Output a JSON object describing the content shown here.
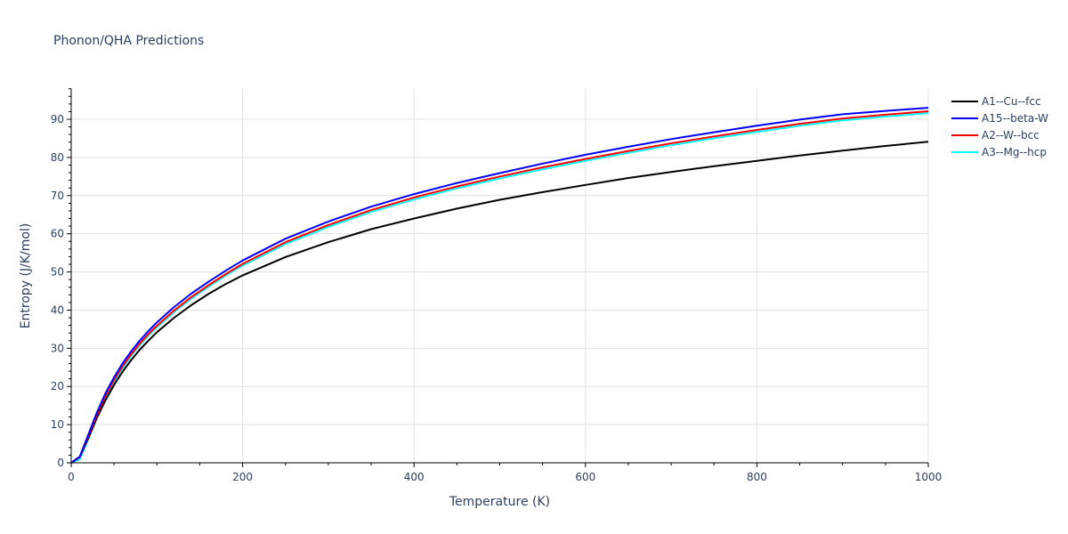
{
  "title": "Phonon/QHA Predictions",
  "chart_data": {
    "type": "line",
    "title": "Phonon/QHA Predictions",
    "xlabel": "Temperature (K)",
    "ylabel": "Entropy (J/K/mol)",
    "xlim": [
      0,
      1000
    ],
    "ylim": [
      0,
      98
    ],
    "x_ticks": [
      0,
      200,
      400,
      600,
      800,
      1000
    ],
    "y_ticks": [
      0,
      10,
      20,
      30,
      40,
      50,
      60,
      70,
      80,
      90
    ],
    "grid": true,
    "legend_position": "right",
    "x": [
      0,
      10,
      20,
      30,
      40,
      50,
      60,
      70,
      80,
      90,
      100,
      120,
      140,
      160,
      180,
      200,
      250,
      300,
      350,
      400,
      450,
      500,
      550,
      600,
      650,
      700,
      750,
      800,
      850,
      900,
      950,
      1000
    ],
    "series": [
      {
        "name": "A1--Cu--fcc",
        "color": "#000000",
        "values": [
          0,
          1.5,
          6.5,
          11.8,
          16.4,
          20.4,
          23.9,
          26.9,
          29.6,
          32.0,
          34.2,
          38.0,
          41.3,
          44.2,
          46.8,
          49.1,
          53.9,
          57.8,
          61.2,
          64.0,
          66.6,
          68.9,
          70.9,
          72.8,
          74.6,
          76.2,
          77.7,
          79.1,
          80.5,
          81.8,
          83.0,
          84.1
        ]
      },
      {
        "name": "A15--beta-W",
        "color": "#0000ff",
        "values": [
          0,
          1.6,
          7.4,
          13.2,
          18.2,
          22.4,
          26.1,
          29.2,
          32.0,
          34.5,
          36.8,
          40.8,
          44.3,
          47.4,
          50.3,
          53.0,
          58.7,
          63.2,
          67.1,
          70.4,
          73.3,
          75.9,
          78.4,
          80.7,
          82.8,
          84.8,
          86.6,
          88.3,
          89.9,
          91.3,
          92.2,
          93.0
        ]
      },
      {
        "name": "A2--W--bcc",
        "color": "#ff0000",
        "values": [
          0,
          1.5,
          7.0,
          12.6,
          17.5,
          21.7,
          25.3,
          28.4,
          31.2,
          33.7,
          35.9,
          39.9,
          43.4,
          46.5,
          49.4,
          52.1,
          57.8,
          62.3,
          66.2,
          69.5,
          72.4,
          75.0,
          77.4,
          79.6,
          81.7,
          83.7,
          85.5,
          87.2,
          88.8,
          90.2,
          91.2,
          92.1
        ]
      },
      {
        "name": "A3--Mg--hcp",
        "color": "#00ffff",
        "values": [
          0,
          0.9,
          6.2,
          11.9,
          16.9,
          21.1,
          24.8,
          28.0,
          30.8,
          33.3,
          35.5,
          39.5,
          43.0,
          46.1,
          49.0,
          51.7,
          57.3,
          61.8,
          65.7,
          69.0,
          71.9,
          74.5,
          76.9,
          79.1,
          81.2,
          83.2,
          85.0,
          86.7,
          88.3,
          89.7,
          90.7,
          91.6
        ]
      }
    ]
  },
  "axes": {
    "x_title": "Temperature (K)",
    "y_title": "Entropy (J/K/mol)",
    "x_tick_labels": [
      "0",
      "200",
      "400",
      "600",
      "800",
      "1000"
    ],
    "y_tick_labels": [
      "0",
      "10",
      "20",
      "30",
      "40",
      "50",
      "60",
      "70",
      "80",
      "90"
    ]
  },
  "legend": {
    "items": [
      {
        "label": "A1--Cu--fcc",
        "color": "#000000"
      },
      {
        "label": "A15--beta-W",
        "color": "#0000ff"
      },
      {
        "label": "A2--W--bcc",
        "color": "#ff0000"
      },
      {
        "label": "A3--Mg--hcp",
        "color": "#00ffff"
      }
    ]
  }
}
